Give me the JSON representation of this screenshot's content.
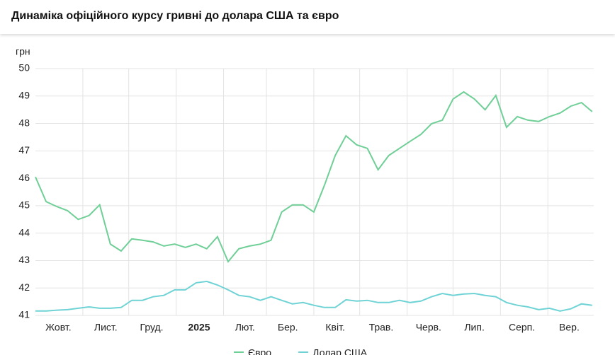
{
  "header": {
    "title": "Динаміка офіційного курсу гривні до долара США та євро"
  },
  "chart_data": {
    "type": "line",
    "y_label": "грн",
    "x": [
      0,
      7,
      14,
      21,
      28,
      35,
      42,
      49,
      56,
      63,
      70,
      77,
      84,
      91,
      98,
      105,
      112,
      119,
      126,
      133,
      140,
      147,
      154,
      161,
      168,
      175,
      182,
      189,
      196,
      203,
      210,
      217,
      224,
      231,
      238,
      245,
      252,
      259,
      266,
      273,
      280,
      287,
      294,
      301,
      308,
      315,
      322,
      329,
      336,
      343,
      350,
      357,
      364
    ],
    "xlim": [
      0,
      365
    ],
    "xticks": [
      {
        "value": 15,
        "label": "Жовт."
      },
      {
        "value": 46,
        "label": "Лист."
      },
      {
        "value": 76,
        "label": "Груд."
      },
      {
        "value": 107,
        "label": "2025",
        "bold": true
      },
      {
        "value": 137,
        "label": "Лют."
      },
      {
        "value": 165,
        "label": "Бер."
      },
      {
        "value": 196,
        "label": "Квіт."
      },
      {
        "value": 226,
        "label": "Трав."
      },
      {
        "value": 257,
        "label": "Черв."
      },
      {
        "value": 287,
        "label": "Лип."
      },
      {
        "value": 318,
        "label": "Серп."
      },
      {
        "value": 349,
        "label": "Вер."
      }
    ],
    "xgrid": [
      31,
      61,
      92,
      123,
      151,
      182,
      212,
      243,
      273,
      304,
      335
    ],
    "ylim": [
      41,
      50
    ],
    "yticks": [
      41,
      42,
      43,
      44,
      45,
      46,
      47,
      48,
      49,
      50
    ],
    "grid": true,
    "series": [
      {
        "name": "Євро",
        "color": "#6fcf97",
        "values": [
          46.05,
          45.15,
          44.97,
          44.82,
          44.5,
          44.64,
          45.03,
          43.6,
          43.35,
          43.79,
          43.74,
          43.68,
          43.53,
          43.6,
          43.48,
          43.6,
          43.43,
          43.87,
          42.96,
          43.43,
          43.53,
          43.6,
          43.74,
          44.77,
          45.03,
          45.03,
          44.77,
          45.75,
          46.83,
          47.55,
          47.22,
          47.09,
          46.31,
          46.83,
          47.09,
          47.35,
          47.6,
          47.99,
          48.12,
          48.89,
          49.15,
          48.89,
          48.5,
          49.02,
          47.86,
          48.25,
          48.12,
          48.07,
          48.25,
          48.38,
          48.63,
          48.76,
          48.43
        ]
      },
      {
        "name": "Долар США",
        "color": "#6fd3d6",
        "values": [
          41.16,
          41.16,
          41.19,
          41.21,
          41.26,
          41.31,
          41.26,
          41.26,
          41.29,
          41.55,
          41.55,
          41.68,
          41.73,
          41.93,
          41.93,
          42.19,
          42.24,
          42.11,
          41.93,
          41.73,
          41.68,
          41.55,
          41.68,
          41.55,
          41.42,
          41.47,
          41.37,
          41.29,
          41.29,
          41.57,
          41.52,
          41.55,
          41.47,
          41.47,
          41.55,
          41.47,
          41.52,
          41.68,
          41.8,
          41.73,
          41.78,
          41.8,
          41.73,
          41.68,
          41.47,
          41.37,
          41.31,
          41.21,
          41.26,
          41.16,
          41.24,
          41.42,
          41.37
        ]
      }
    ]
  }
}
